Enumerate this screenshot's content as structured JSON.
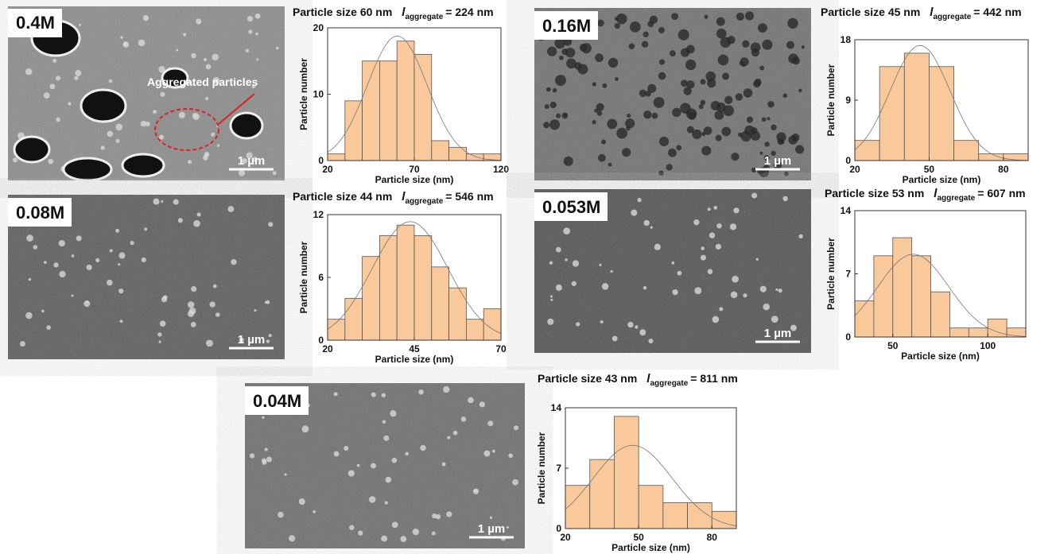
{
  "chart_data": [
    {
      "type": "histogram",
      "sample_label": "0.4M",
      "scale_bar": "1 µm",
      "annotation": "Aggregated particles",
      "title": "Particle size 60 nm",
      "aggregate_symbol": "l",
      "aggregate_subscript": "aggregate",
      "aggregate_value": "= 224 nm",
      "x_label": "Particle size (nm)",
      "y_label": "Particle number",
      "color": "#f9c89b",
      "bins": [
        20,
        30,
        40,
        50,
        60,
        70,
        80,
        90,
        100,
        110,
        120
      ],
      "values": [
        1,
        9,
        15,
        15,
        18,
        16,
        3,
        2,
        1,
        1
      ],
      "xlim": [
        20,
        120
      ],
      "xticks": [
        20,
        70,
        120
      ],
      "ylim": [
        0,
        20
      ],
      "yticks": [
        0,
        10,
        20
      ]
    },
    {
      "type": "histogram",
      "sample_label": "0.16M",
      "scale_bar": "1 µm",
      "title": "Particle size 45 nm",
      "aggregate_symbol": "l",
      "aggregate_subscript": "aggregate",
      "aggregate_value": "= 442 nm",
      "x_label": "Particle size (nm)",
      "y_label": "Particle number",
      "color": "#f9c89b",
      "bins": [
        20,
        30,
        40,
        50,
        60,
        70,
        80,
        90
      ],
      "values": [
        3,
        14,
        16,
        14,
        3,
        1,
        1
      ],
      "xlim": [
        20,
        90
      ],
      "xticks": [
        20,
        50,
        80
      ],
      "ylim": [
        0,
        18
      ],
      "yticks": [
        0,
        9,
        18
      ]
    },
    {
      "type": "histogram",
      "sample_label": "0.08M",
      "scale_bar": "1 µm",
      "title": "Particle size 44 nm",
      "aggregate_symbol": "l",
      "aggregate_subscript": "aggregate",
      "aggregate_value": "= 546 nm",
      "x_label": "Particle size (nm)",
      "y_label": "Particle number",
      "color": "#f9c89b",
      "bins": [
        20,
        25,
        30,
        35,
        40,
        45,
        50,
        55,
        60,
        65,
        70
      ],
      "values": [
        2,
        4,
        8,
        10,
        11,
        10,
        7,
        5,
        2,
        3
      ],
      "xlim": [
        20,
        70
      ],
      "xticks": [
        20,
        45,
        70
      ],
      "ylim": [
        0,
        12
      ],
      "yticks": [
        0,
        6,
        12
      ]
    },
    {
      "type": "histogram",
      "sample_label": "0.053M",
      "scale_bar": "1 µm",
      "title": "Particle size 53 nm",
      "aggregate_symbol": "l",
      "aggregate_subscript": "aggregate",
      "aggregate_value": "= 607 nm",
      "x_label": "Particle size (nm)",
      "y_label": "Particle number",
      "color": "#f9c89b",
      "bins": [
        30,
        40,
        50,
        60,
        70,
        80,
        90,
        100,
        110,
        120
      ],
      "values": [
        4,
        9,
        11,
        9,
        5,
        1,
        1,
        2,
        1
      ],
      "xlim": [
        30,
        120
      ],
      "xticks": [
        50,
        100
      ],
      "ylim": [
        0,
        14
      ],
      "yticks": [
        0,
        7,
        14
      ]
    },
    {
      "type": "histogram",
      "sample_label": "0.04M",
      "scale_bar": "1 µm",
      "title": "Particle size 43 nm",
      "aggregate_symbol": "l",
      "aggregate_subscript": "aggregate",
      "aggregate_value": "= 811 nm",
      "x_label": "Particle size (nm)",
      "y_label": "Particle number",
      "color": "#f9c89b",
      "bins": [
        20,
        30,
        40,
        50,
        60,
        70,
        80,
        90
      ],
      "values": [
        5,
        8,
        13,
        5,
        3,
        3,
        2
      ],
      "xlim": [
        20,
        90
      ],
      "xticks": [
        20,
        50,
        80
      ],
      "ylim": [
        0,
        14
      ],
      "yticks": [
        0,
        7,
        14
      ]
    }
  ]
}
